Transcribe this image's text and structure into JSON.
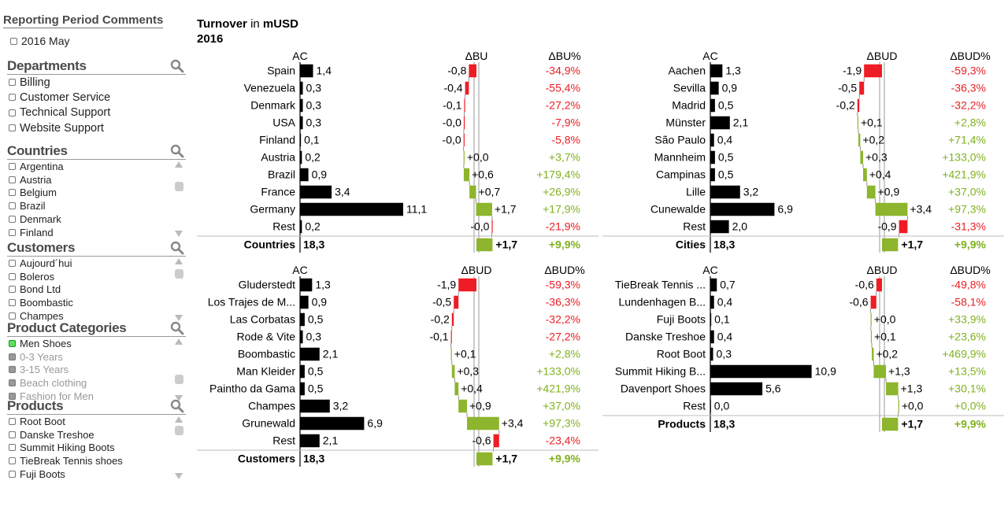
{
  "sidebar": {
    "reporting_period": {
      "title": "Reporting Period Comments",
      "item": "2016 May"
    },
    "departments": {
      "title": "Departments",
      "items": [
        "Billing",
        "Customer Service",
        "Technical Support",
        "Website Support"
      ]
    },
    "countries": {
      "title": "Countries",
      "items": [
        "Argentina",
        "Austria",
        "Belgium",
        "Brazil",
        "Denmark",
        "Finland"
      ]
    },
    "customers": {
      "title": "Customers",
      "items": [
        "Aujourd´hui",
        "Boleros",
        "Bond Ltd",
        "Boombastic",
        "Champes"
      ]
    },
    "product_categories": {
      "title": "Product Categories",
      "items": [
        "Men Shoes",
        "0-3 Years",
        "3-15 Years",
        "Beach clothing",
        "Fashion for Men"
      ],
      "selected": "Men Shoes"
    },
    "products": {
      "title": "Products",
      "items": [
        "Root Boot",
        "Danske Treshoe",
        "Summit Hiking Boots",
        "TieBreak Tennis shoes",
        "Fuji Boots"
      ]
    }
  },
  "header": {
    "title_bold1": "Turnover",
    "title_mid": " in ",
    "title_bold2": "mUSD",
    "year": "2016"
  },
  "colors": {
    "actual": "#000000",
    "positive": "#8db52d",
    "negative": "#ee1c25",
    "pct_positive": "#7fb11d",
    "pct_negative": "#e81e25"
  },
  "chart_data": [
    {
      "type": "bar",
      "col_ac": "AC",
      "col_delta": "ΔBU",
      "col_pct": "ΔBU%",
      "categories": [
        "Spain",
        "Venezuela",
        "Denmark",
        "USA",
        "Finland",
        "Austria",
        "Brazil",
        "France",
        "Germany",
        "Rest"
      ],
      "ac": [
        1.4,
        0.3,
        0.3,
        0.3,
        0.1,
        0.2,
        0.9,
        3.4,
        11.1,
        0.2
      ],
      "ac_labels": [
        "1,4",
        "0,3",
        "0,3",
        "0,3",
        "0,1",
        "0,2",
        "0,9",
        "3,4",
        "11,1",
        "0,2"
      ],
      "delta": [
        -0.8,
        -0.4,
        -0.1,
        -0.04,
        -0.02,
        0.02,
        0.6,
        0.7,
        1.7,
        -0.04
      ],
      "delta_labels": [
        "-0,8",
        "-0,4",
        "-0,1",
        "-0,0",
        "-0,0",
        "+0,0",
        "+0,6",
        "+0,7",
        "+1,7",
        "-0,0"
      ],
      "pct_labels": [
        "-34,9%",
        "-55,4%",
        "-27,2%",
        "-7,9%",
        "-5,8%",
        "+3,7%",
        "+179,4%",
        "+26,9%",
        "+17,9%",
        "-21,9%"
      ],
      "total": {
        "label": "Countries",
        "ac": 18.3,
        "ac_label": "18,3",
        "delta": 1.7,
        "delta_label": "+1,7",
        "pct_label": "+9,9%"
      }
    },
    {
      "type": "bar",
      "col_ac": "AC",
      "col_delta": "ΔBUD",
      "col_pct": "ΔBUD%",
      "categories": [
        "Aachen",
        "Sevilla",
        "Madrid",
        "Münster",
        "São Paulo",
        "Mannheim",
        "Campinas",
        "Lille",
        "Cunewalde",
        "Rest"
      ],
      "ac": [
        1.3,
        0.9,
        0.5,
        2.1,
        0.4,
        0.5,
        0.5,
        3.2,
        6.9,
        2.0
      ],
      "ac_labels": [
        "1,3",
        "0,9",
        "0,5",
        "2,1",
        "0,4",
        "0,5",
        "0,5",
        "3,2",
        "6,9",
        "2,0"
      ],
      "delta": [
        -1.9,
        -0.5,
        -0.2,
        0.1,
        0.2,
        0.3,
        0.4,
        0.9,
        3.4,
        -0.9
      ],
      "delta_labels": [
        "-1,9",
        "-0,5",
        "-0,2",
        "+0,1",
        "+0,2",
        "+0,3",
        "+0,4",
        "+0,9",
        "+3,4",
        "-0,9"
      ],
      "pct_labels": [
        "-59,3%",
        "-36,3%",
        "-32,2%",
        "+2,8%",
        "+71,4%",
        "+133,0%",
        "+421,9%",
        "+37,0%",
        "+97,3%",
        "-31,3%"
      ],
      "total": {
        "label": "Cities",
        "ac": 18.3,
        "ac_label": "18,3",
        "delta": 1.7,
        "delta_label": "+1,7",
        "pct_label": "+9,9%"
      }
    },
    {
      "type": "bar",
      "col_ac": "AC",
      "col_delta": "ΔBUD",
      "col_pct": "ΔBUD%",
      "categories": [
        "Gluderstedt",
        "Los Trajes de M...",
        "Las Corbatas",
        "Rode & Vite",
        "Boombastic",
        "Man Kleider",
        "Paintho da Gama",
        "Champes",
        "Grunewald",
        "Rest"
      ],
      "ac": [
        1.3,
        0.9,
        0.5,
        0.3,
        2.1,
        0.5,
        0.5,
        3.2,
        6.9,
        2.1
      ],
      "ac_labels": [
        "1,3",
        "0,9",
        "0,5",
        "0,3",
        "2,1",
        "0,5",
        "0,5",
        "3,2",
        "6,9",
        "2,1"
      ],
      "delta": [
        -1.9,
        -0.5,
        -0.2,
        -0.1,
        0.1,
        0.3,
        0.4,
        0.9,
        3.4,
        -0.6
      ],
      "delta_labels": [
        "-1,9",
        "-0,5",
        "-0,2",
        "-0,1",
        "+0,1",
        "+0,3",
        "+0,4",
        "+0,9",
        "+3,4",
        "-0,6"
      ],
      "pct_labels": [
        "-59,3%",
        "-36,3%",
        "-32,2%",
        "-27,2%",
        "+2,8%",
        "+133,0%",
        "+421,9%",
        "+37,0%",
        "+97,3%",
        "-23,4%"
      ],
      "total": {
        "label": "Customers",
        "ac": 18.3,
        "ac_label": "18,3",
        "delta": 1.7,
        "delta_label": "+1,7",
        "pct_label": "+9,9%"
      }
    },
    {
      "type": "bar",
      "col_ac": "AC",
      "col_delta": "ΔBUD",
      "col_pct": "ΔBUD%",
      "categories": [
        "TieBreak Tennis ...",
        "Lundenhagen B...",
        "Fuji Boots",
        "Danske Treshoe",
        "Root Boot",
        "Summit Hiking B...",
        "Davenport Shoes",
        "Rest"
      ],
      "ac": [
        0.7,
        0.4,
        0.1,
        0.4,
        0.3,
        10.9,
        5.6,
        0.0
      ],
      "ac_labels": [
        "0,7",
        "0,4",
        "0,1",
        "0,4",
        "0,3",
        "10,9",
        "5,6",
        "0,0"
      ],
      "delta": [
        -0.6,
        -0.6,
        0.02,
        0.1,
        0.2,
        1.3,
        1.3,
        0.0
      ],
      "delta_labels": [
        "-0,6",
        "-0,6",
        "+0,0",
        "+0,1",
        "+0,2",
        "+1,3",
        "+1,3",
        "+0,0"
      ],
      "pct_labels": [
        "-49,8%",
        "-58,1%",
        "+33,9%",
        "+23,6%",
        "+469,9%",
        "+13,5%",
        "+30,1%",
        "+0,0%"
      ],
      "total": {
        "label": "Products",
        "ac": 18.3,
        "ac_label": "18,3",
        "delta": 1.7,
        "delta_label": "+1,7",
        "pct_label": "+9,9%"
      }
    }
  ]
}
